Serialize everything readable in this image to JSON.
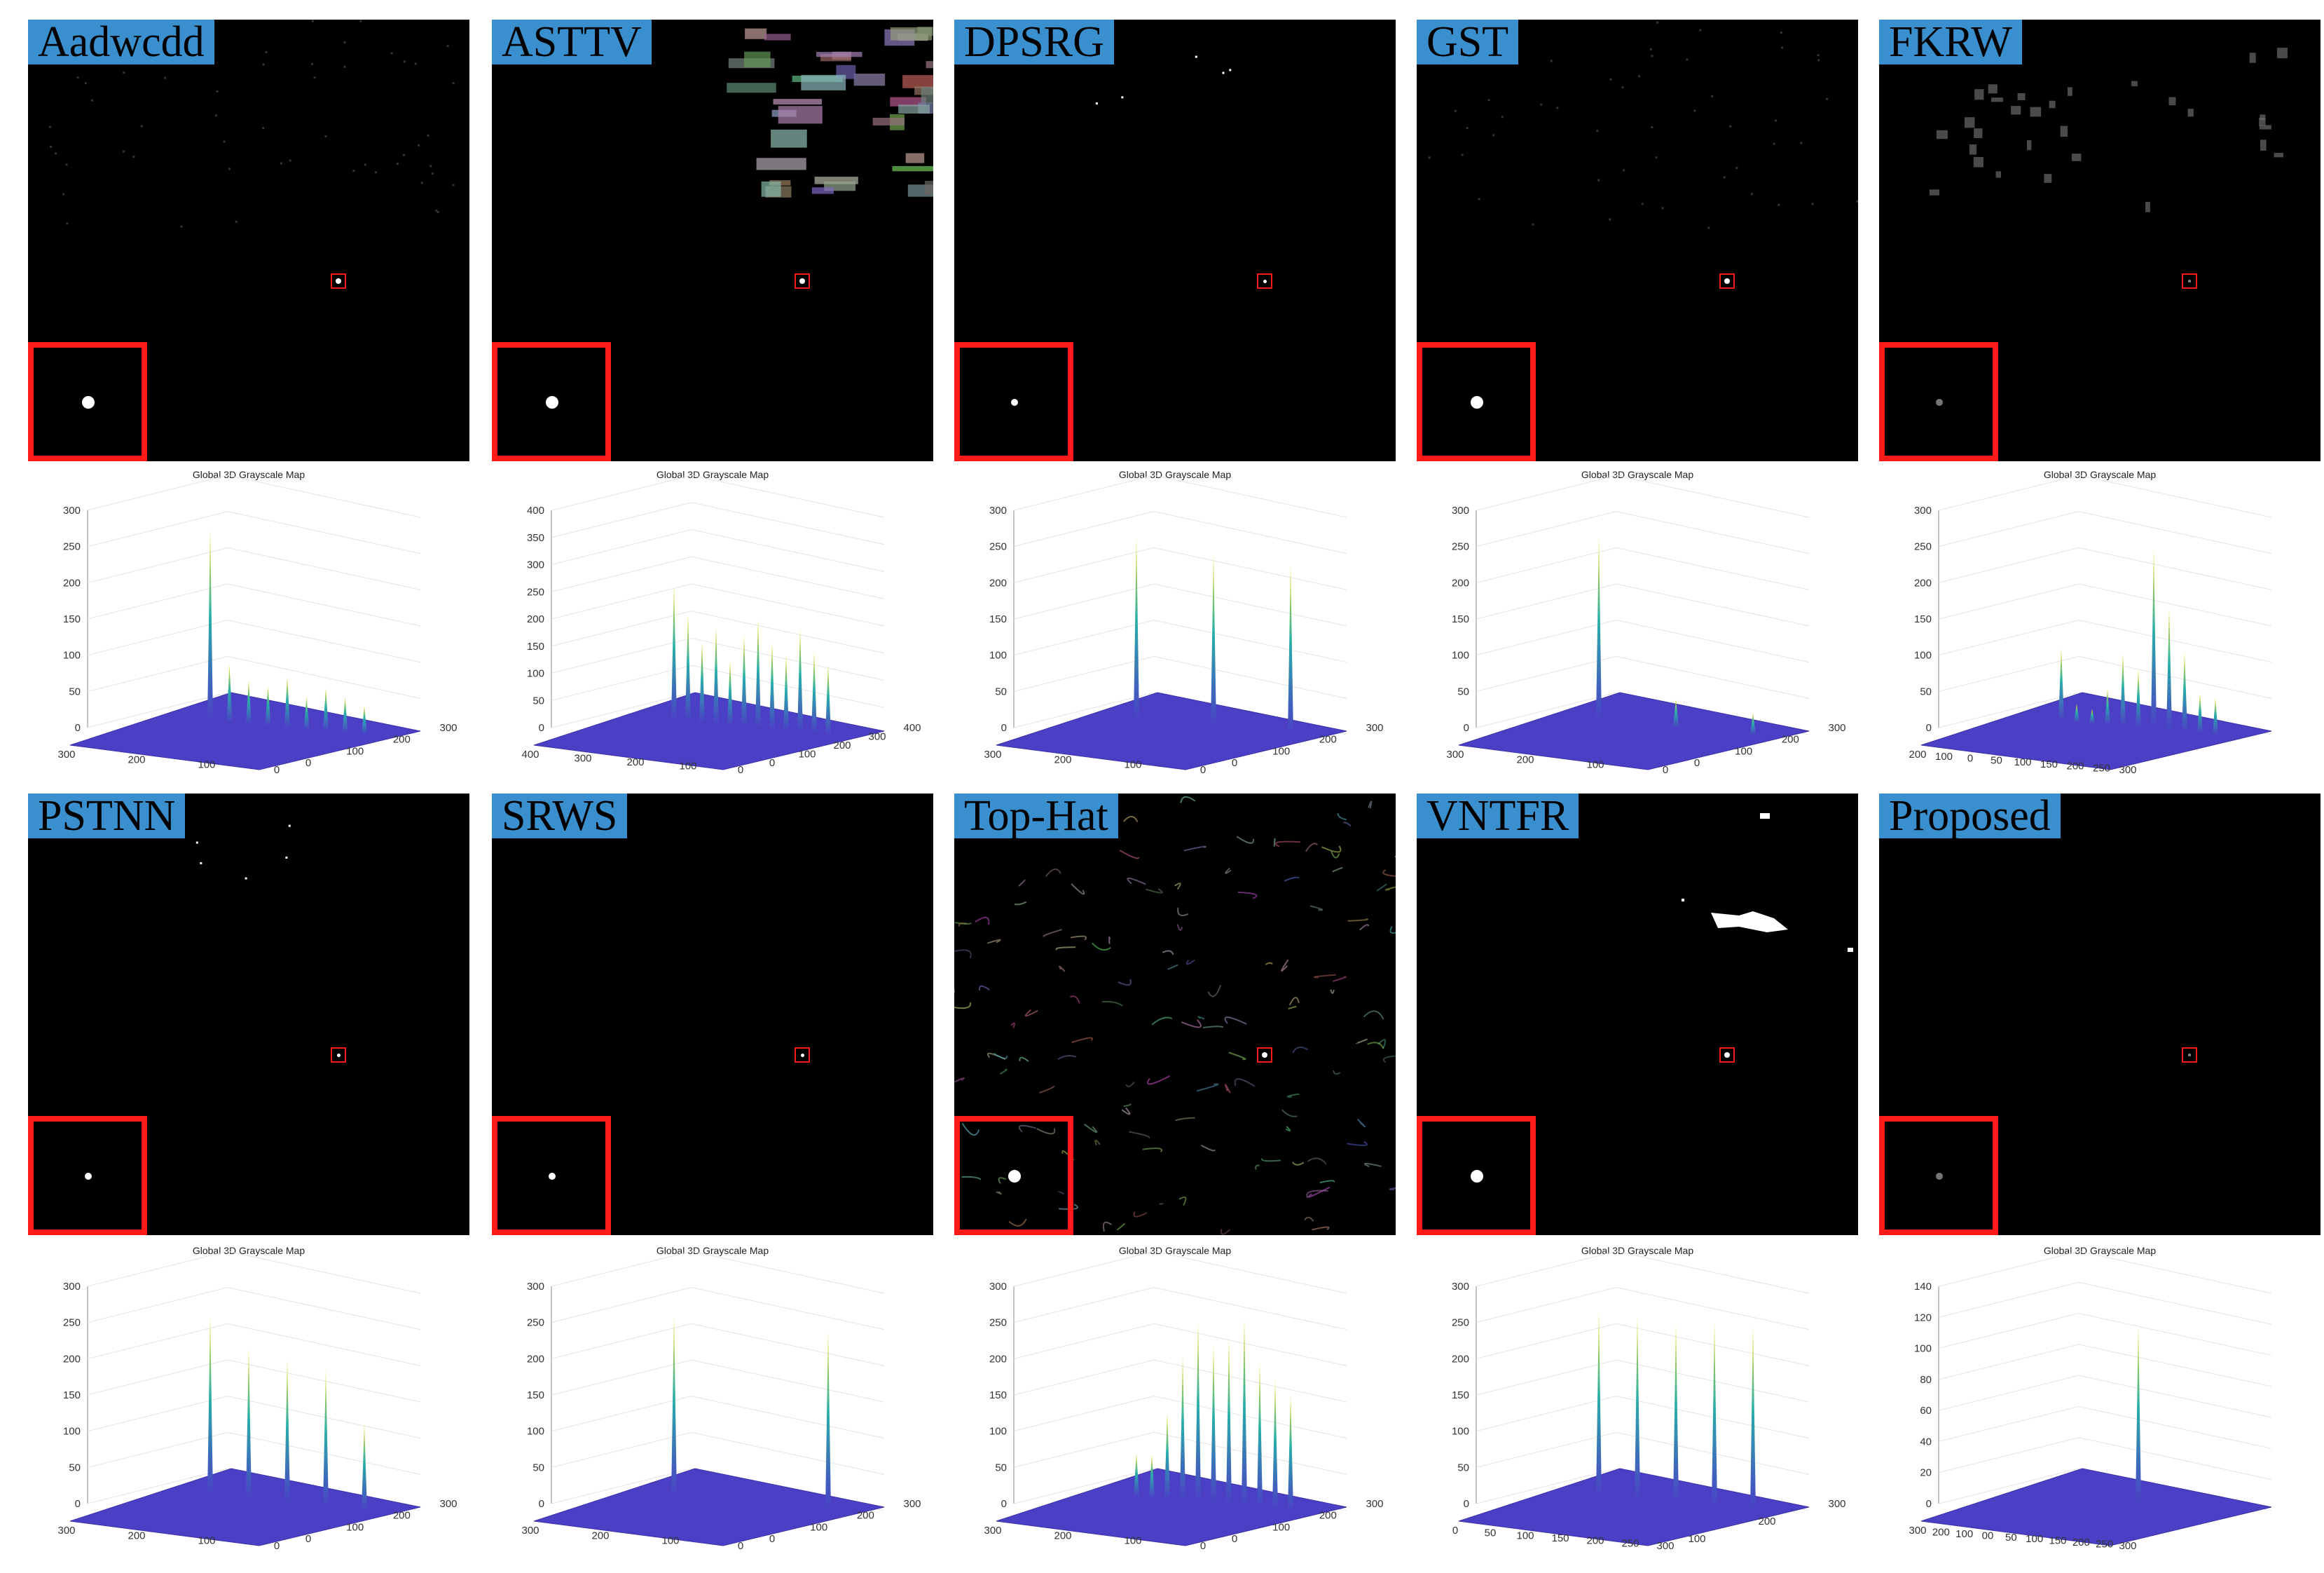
{
  "plot_title": "Global 3D Grayscale Map",
  "colors": {
    "label_bg": "#3a8fce",
    "roi": "#ff1a1a",
    "surface": "#4b3fc6",
    "peak_top": "#f2e21c",
    "peak_mid": "#29b0a8"
  },
  "methods": [
    {
      "name": "Aadwcdd",
      "background": "faint",
      "target": "bright",
      "z_ticks": [
        "0",
        "50",
        "100",
        "150",
        "200",
        "250",
        "300"
      ],
      "x_ticks": [
        "300",
        "200",
        "100",
        "0"
      ],
      "y_ticks": [
        "0",
        "100",
        "200",
        "300"
      ]
    },
    {
      "name": "ASTTV",
      "background": "clutter-top-right",
      "target": "bright",
      "z_ticks": [
        "0",
        "50",
        "100",
        "150",
        "200",
        "250",
        "300",
        "350",
        "400"
      ],
      "x_ticks": [
        "400",
        "300",
        "200",
        "100",
        "0"
      ],
      "y_ticks": [
        "0",
        "100",
        "200",
        "300",
        "400"
      ]
    },
    {
      "name": "DPSRG",
      "background": "dots",
      "target": "small",
      "z_ticks": [
        "0",
        "50",
        "100",
        "150",
        "200",
        "250",
        "300"
      ],
      "x_ticks": [
        "300",
        "200",
        "100",
        "0"
      ],
      "y_ticks": [
        "0",
        "100",
        "200",
        "300"
      ]
    },
    {
      "name": "GST",
      "background": "faint",
      "target": "bright",
      "z_ticks": [
        "0",
        "50",
        "100",
        "150",
        "200",
        "250",
        "300"
      ],
      "x_ticks": [
        "300",
        "200",
        "100",
        "0"
      ],
      "y_ticks": [
        "0",
        "100",
        "200",
        "300"
      ]
    },
    {
      "name": "FKRW",
      "background": "patches",
      "target": "dim",
      "z_ticks": [
        "0",
        "50",
        "100",
        "150",
        "200",
        "250",
        "300"
      ],
      "x_ticks": [
        "200",
        "100",
        "0",
        "50",
        "100",
        "150",
        "200",
        "250",
        "300"
      ],
      "y_ticks": []
    },
    {
      "name": "PSTNN",
      "background": "dots",
      "target": "small",
      "z_ticks": [
        "0",
        "50",
        "100",
        "150",
        "200",
        "250",
        "300"
      ],
      "x_ticks": [
        "300",
        "200",
        "100",
        "0"
      ],
      "y_ticks": [
        "0",
        "100",
        "200",
        "300"
      ]
    },
    {
      "name": "SRWS",
      "background": "clean",
      "target": "small",
      "z_ticks": [
        "0",
        "50",
        "100",
        "150",
        "200",
        "250",
        "300"
      ],
      "x_ticks": [
        "300",
        "200",
        "100",
        "0"
      ],
      "y_ticks": [
        "0",
        "100",
        "200",
        "300"
      ]
    },
    {
      "name": "Top-Hat",
      "background": "texture",
      "target": "bright",
      "z_ticks": [
        "0",
        "50",
        "100",
        "150",
        "200",
        "250",
        "300"
      ],
      "x_ticks": [
        "300",
        "200",
        "100",
        "0"
      ],
      "y_ticks": [
        "0",
        "100",
        "200",
        "300"
      ]
    },
    {
      "name": "VNTFR",
      "background": "white-blobs",
      "target": "bright",
      "z_ticks": [
        "0",
        "50",
        "100",
        "150",
        "200",
        "250",
        "300"
      ],
      "x_ticks": [
        "0",
        "50",
        "100",
        "150",
        "200",
        "250",
        "300"
      ],
      "y_ticks": [
        "100",
        "200",
        "300"
      ]
    },
    {
      "name": "Proposed",
      "background": "clean",
      "target": "dim",
      "z_ticks": [
        "0",
        "20",
        "40",
        "60",
        "80",
        "100",
        "120",
        "140"
      ],
      "x_ticks": [
        "300",
        "200",
        "100",
        "00",
        "50",
        "100",
        "150",
        "200",
        "250",
        "300"
      ],
      "y_ticks": []
    }
  ],
  "chart_data": [
    {
      "type": "surface3d",
      "method": "Aadwcdd",
      "peaks": [
        265,
        80,
        60,
        55,
        70,
        45,
        60,
        50,
        40
      ]
    },
    {
      "type": "surface3d",
      "method": "ASTTV",
      "peaks": [
        250,
        200,
        150,
        180,
        120,
        170,
        200,
        160,
        140,
        190,
        150,
        130
      ]
    },
    {
      "type": "surface3d",
      "method": "DPSRG",
      "peaks": [
        255,
        240,
        235
      ]
    },
    {
      "type": "surface3d",
      "method": "GST",
      "peaks": [
        255,
        40,
        30
      ]
    },
    {
      "type": "surface3d",
      "method": "FKRW",
      "peaks": [
        100,
        25,
        20,
        50,
        100,
        80,
        250,
        170,
        110,
        55,
        50
      ]
    },
    {
      "type": "surface3d",
      "method": "PSTNN",
      "peaks": [
        250,
        210,
        200,
        190,
        120
      ]
    },
    {
      "type": "surface3d",
      "method": "SRWS",
      "peaks": [
        250,
        250
      ]
    },
    {
      "type": "surface3d",
      "method": "Top-Hat",
      "peaks": [
        60,
        60,
        120,
        200,
        250,
        220,
        230,
        260,
        200,
        180,
        160
      ]
    },
    {
      "type": "surface3d",
      "method": "VNTFR",
      "peaks": [
        255,
        255,
        250,
        255,
        255
      ]
    },
    {
      "type": "surface3d",
      "method": "Proposed",
      "peaks": [
        115
      ]
    }
  ]
}
